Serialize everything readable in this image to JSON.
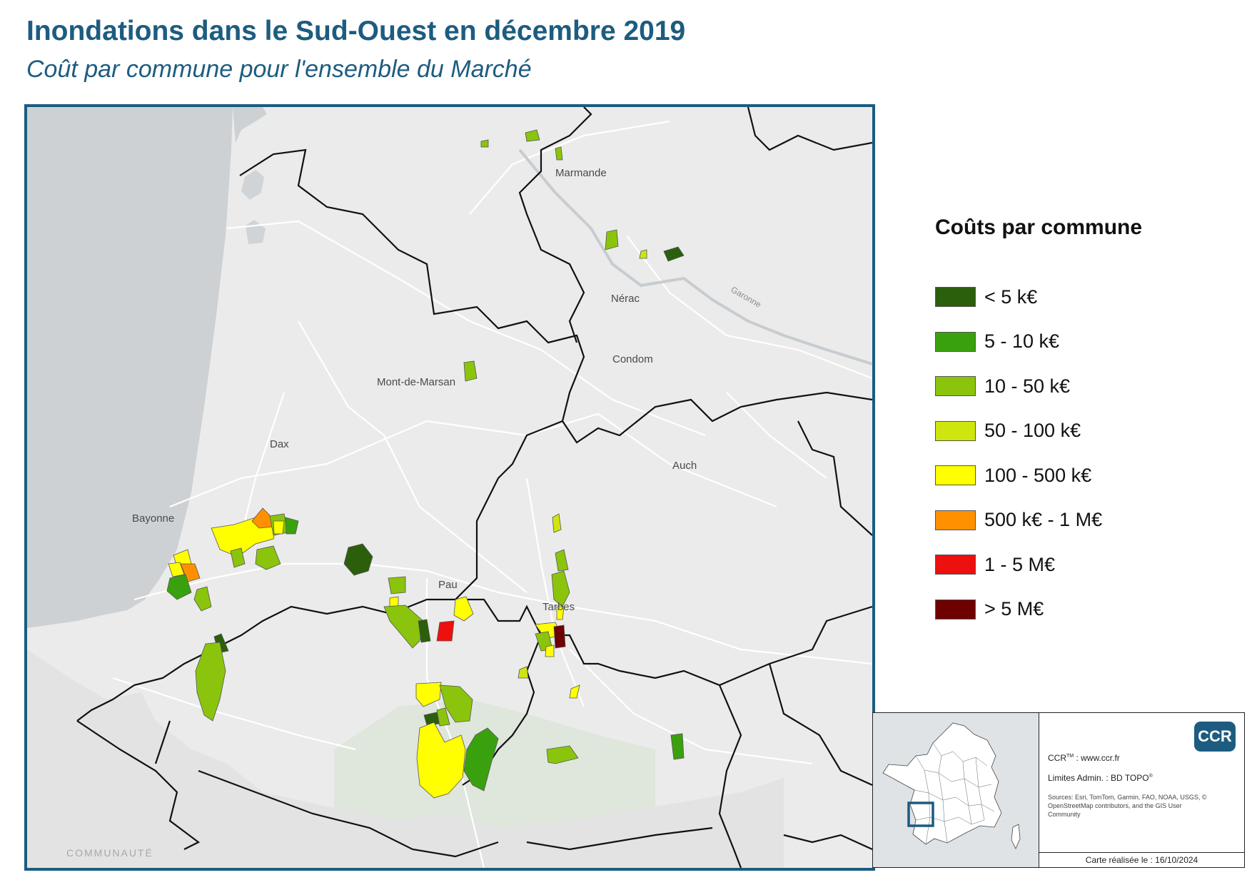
{
  "header": {
    "title": "Inondations dans le Sud-Ouest en décembre 2019",
    "subtitle": "Coût par commune pour l'ensemble du Marché"
  },
  "map": {
    "cities": [
      "Marmande",
      "Nérac",
      "Condom",
      "Mont-de-Marsan",
      "Dax",
      "Auch",
      "Bayonne",
      "Pau",
      "Tarbes"
    ],
    "river_label": "Garonne",
    "watermark": "COMMUNAUTÉ",
    "colors": {
      "water": "#cdd1d4",
      "land": "#ebebeb",
      "border": "#111111",
      "frame": "#1a5c80"
    }
  },
  "legend": {
    "title": "Coûts par commune",
    "classes": [
      {
        "label": "< 5 k€",
        "color": "#2b5f0c"
      },
      {
        "label": "5 - 10 k€",
        "color": "#3aa10e"
      },
      {
        "label": "10 - 50 k€",
        "color": "#8bc40c"
      },
      {
        "label": "50 - 100 k€",
        "color": "#cfe60e"
      },
      {
        "label": "100 - 500 k€",
        "color": "#ffff00"
      },
      {
        "label": "500 k€ - 1 M€",
        "color": "#ff9100"
      },
      {
        "label": "1 - 5 M€",
        "color": "#ee0f0f"
      },
      {
        "label": "> 5 M€",
        "color": "#6e0000"
      }
    ]
  },
  "inset": {
    "logo": "CCR",
    "ccr_prefix": "CCR",
    "ccr_tm": "TM",
    "ccr_site": " : www.ccr.fr",
    "limites_prefix": "Limites Admin. : BD TOPO",
    "limites_reg": "®",
    "sources": "Sources: Esri, TomTom, Garmin, FAO, NOAA, USGS, © OpenStreetMap contributors, and the GIS User Community",
    "date": "Carte réalisée le : 16/10/2024"
  }
}
